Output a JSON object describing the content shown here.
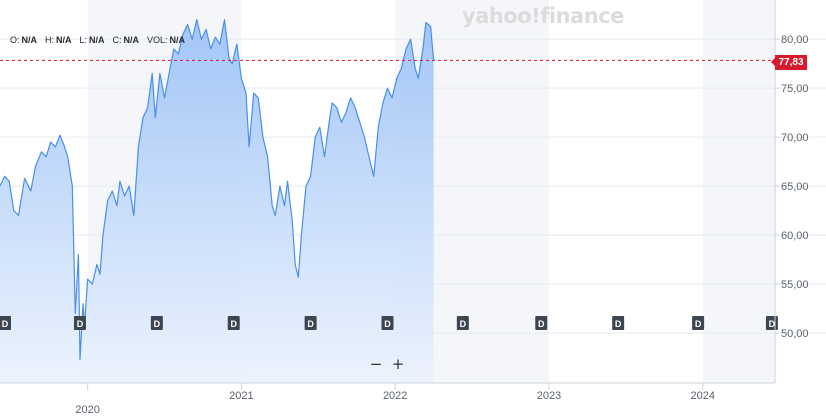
{
  "watermark": "yahoo!finance",
  "ohlc": [
    {
      "key": "O:",
      "value": "N/A"
    },
    {
      "key": "H:",
      "value": "N/A"
    },
    {
      "key": "L:",
      "value": "N/A"
    },
    {
      "key": "C:",
      "value": "N/A"
    },
    {
      "key": "VOL:",
      "value": "N/A"
    }
  ],
  "zoom": {
    "minus": "−",
    "plus": "+"
  },
  "last_price_label": "77,83",
  "dividend_marker_label": "D",
  "colors": {
    "line": "#4a8fe8",
    "fill_top": "#9ec3f7",
    "fill_bottom": "#e8f1fd",
    "price_tag": "#d81b2c",
    "price_line": "#d81b2c"
  },
  "chart_data": {
    "type": "area",
    "title": "",
    "xlabel": "",
    "ylabel": "",
    "ylim": [
      45,
      84
    ],
    "y_ticks": [
      50,
      55,
      60,
      65,
      70,
      75,
      80
    ],
    "y_tick_labels": [
      "50,00",
      "55,00",
      "60,00",
      "65,00",
      "70,00",
      "75,00",
      "80,00"
    ],
    "x_ticks": [
      2020.0,
      2021.0,
      2022.0,
      2023.0,
      2024.0
    ],
    "x_tick_labels": [
      "2020",
      "2021",
      "2022",
      "2023",
      "2024"
    ],
    "xlim": [
      2019.43,
      2024.47
    ],
    "last_price": 77.83,
    "dividend_markers_x": [
      2019.45,
      2019.95,
      2020.45,
      2020.95,
      2021.45,
      2021.95,
      2022.44,
      2022.95,
      2023.45,
      2023.97,
      2024.45
    ],
    "series": [
      {
        "values": [
          [
            2019.43,
            65.0
          ],
          [
            2019.46,
            66.0
          ],
          [
            2019.49,
            65.5
          ],
          [
            2019.52,
            62.5
          ],
          [
            2019.55,
            62.0
          ],
          [
            2019.59,
            65.8
          ],
          [
            2019.63,
            64.5
          ],
          [
            2019.66,
            67.0
          ],
          [
            2019.7,
            68.5
          ],
          [
            2019.73,
            68.0
          ],
          [
            2019.76,
            69.5
          ],
          [
            2019.79,
            69.0
          ],
          [
            2019.82,
            70.2
          ],
          [
            2019.85,
            69.0
          ],
          [
            2019.87,
            68.0
          ],
          [
            2019.9,
            65.0
          ],
          [
            2019.92,
            52.0
          ],
          [
            2019.94,
            58.0
          ],
          [
            2019.95,
            47.3
          ],
          [
            2019.97,
            53.0
          ],
          [
            2019.98,
            50.8
          ],
          [
            2020.0,
            55.5
          ],
          [
            2020.03,
            55.0
          ],
          [
            2020.06,
            57.0
          ],
          [
            2020.08,
            56.0
          ],
          [
            2020.1,
            60.0
          ],
          [
            2020.13,
            63.5
          ],
          [
            2020.16,
            64.5
          ],
          [
            2020.19,
            63.0
          ],
          [
            2020.21,
            65.5
          ],
          [
            2020.24,
            64.0
          ],
          [
            2020.27,
            65.0
          ],
          [
            2020.3,
            62.0
          ],
          [
            2020.33,
            69.0
          ],
          [
            2020.36,
            72.0
          ],
          [
            2020.39,
            73.0
          ],
          [
            2020.42,
            76.5
          ],
          [
            2020.44,
            72.0
          ],
          [
            2020.47,
            76.5
          ],
          [
            2020.5,
            74.0
          ],
          [
            2020.53,
            76.5
          ],
          [
            2020.56,
            79.0
          ],
          [
            2020.59,
            78.5
          ],
          [
            2020.62,
            80.5
          ],
          [
            2020.65,
            81.5
          ],
          [
            2020.68,
            80.0
          ],
          [
            2020.71,
            82.0
          ],
          [
            2020.74,
            80.0
          ],
          [
            2020.77,
            81.0
          ],
          [
            2020.8,
            79.0
          ],
          [
            2020.83,
            80.2
          ],
          [
            2020.86,
            79.5
          ],
          [
            2020.89,
            82.0
          ],
          [
            2020.92,
            78.0
          ],
          [
            2020.94,
            77.5
          ],
          [
            2020.97,
            79.5
          ],
          [
            2021.0,
            76.0
          ],
          [
            2021.03,
            74.5
          ],
          [
            2021.05,
            69.0
          ],
          [
            2021.08,
            74.5
          ],
          [
            2021.11,
            74.0
          ],
          [
            2021.14,
            70.0
          ],
          [
            2021.17,
            68.0
          ],
          [
            2021.2,
            63.0
          ],
          [
            2021.22,
            62.0
          ],
          [
            2021.25,
            65.0
          ],
          [
            2021.28,
            63.0
          ],
          [
            2021.3,
            65.5
          ],
          [
            2021.33,
            61.5
          ],
          [
            2021.35,
            57.0
          ],
          [
            2021.37,
            55.7
          ],
          [
            2021.39,
            60.0
          ],
          [
            2021.42,
            65.0
          ],
          [
            2021.45,
            66.0
          ],
          [
            2021.48,
            70.0
          ],
          [
            2021.51,
            71.0
          ],
          [
            2021.54,
            68.0
          ],
          [
            2021.57,
            71.5
          ],
          [
            2021.59,
            73.5
          ],
          [
            2021.62,
            73.0
          ],
          [
            2021.65,
            71.5
          ],
          [
            2021.68,
            72.5
          ],
          [
            2021.71,
            74.0
          ],
          [
            2021.74,
            73.0
          ],
          [
            2021.77,
            71.5
          ],
          [
            2021.8,
            70.0
          ],
          [
            2021.83,
            68.0
          ],
          [
            2021.86,
            66.0
          ],
          [
            2021.89,
            71.0
          ],
          [
            2021.92,
            73.5
          ],
          [
            2021.95,
            75.0
          ],
          [
            2021.98,
            74.0
          ],
          [
            2022.01,
            76.0
          ],
          [
            2022.04,
            77.0
          ],
          [
            2022.07,
            79.0
          ],
          [
            2022.1,
            80.0
          ],
          [
            2022.13,
            77.0
          ],
          [
            2022.15,
            76.0
          ],
          [
            2022.18,
            79.0
          ],
          [
            2022.2,
            81.7
          ],
          [
            2022.23,
            81.3
          ],
          [
            2022.25,
            77.8
          ]
        ]
      }
    ]
  }
}
